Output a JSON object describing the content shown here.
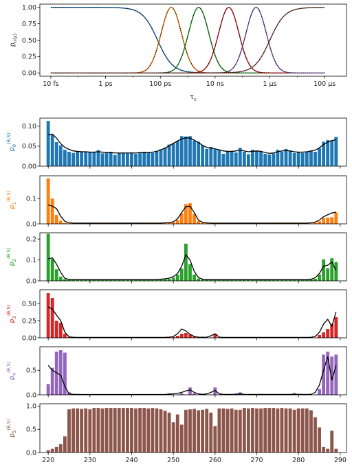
{
  "chart_data": [
    {
      "type": "line",
      "xlabel": "τ_c",
      "ylabel": "ρ_n(z)",
      "xscale": "log",
      "xlim_log10_seconds": [
        -14.4,
        -3.2
      ],
      "ylim": [
        -0.05,
        1.05
      ],
      "x_tick_labels": [
        "10 fs",
        "1 ps",
        "100 ps",
        "10 ns",
        "1 μs",
        "100 μs"
      ],
      "x_tick_values_log10": [
        -14,
        -12,
        -10,
        -8,
        -6,
        -4
      ],
      "y_tick_labels": [
        "0.00",
        "0.25",
        "0.50",
        "0.75",
        "1.00"
      ],
      "y_tick_values": [
        0.0,
        0.25,
        0.5,
        0.75,
        1.0
      ],
      "grid": false,
      "overlay": "black dotted line on each curve",
      "series": [
        {
          "color": "#1f77b4",
          "kind": "step-down",
          "center_log10": -10.1,
          "width": 0.5
        },
        {
          "color": "#ff7f0e",
          "kind": "bump",
          "center_log10": -9.6,
          "width": 0.5
        },
        {
          "color": "#2ca02c",
          "kind": "bump",
          "center_log10": -8.6,
          "width": 0.5
        },
        {
          "color": "#d62728",
          "kind": "bump",
          "center_log10": -7.5,
          "width": 0.5
        },
        {
          "color": "#9467bd",
          "kind": "bump",
          "center_log10": -6.5,
          "width": 0.5
        },
        {
          "color": "#8c564b",
          "kind": "step-up",
          "center_log10": -6.0,
          "width": 0.5
        }
      ]
    },
    {
      "type": "bar",
      "x_start": 220,
      "x_end": 289,
      "xlim": [
        218,
        291.5
      ],
      "x_tick_labels": [
        "220",
        "230",
        "240",
        "250",
        "260",
        "270",
        "280",
        "290"
      ],
      "x_tick_values": [
        220,
        230,
        240,
        250,
        260,
        270,
        280,
        290
      ],
      "overlay": "black line",
      "panels": [
        {
          "ylabel": "ρ_0^(θ,S)",
          "color": "#1f77b4",
          "ylim": [
            0,
            0.12
          ],
          "y_tick_labels": [
            "0.00",
            "0.05",
            "0.10"
          ],
          "y_tick_values": [
            0,
            0.05,
            0.1
          ],
          "bars": [
            0.113,
            0.078,
            0.06,
            0.052,
            0.041,
            0.036,
            0.033,
            0.036,
            0.037,
            0.036,
            0.035,
            0.034,
            0.04,
            0.032,
            0.033,
            0.036,
            0.028,
            0.033,
            0.033,
            0.032,
            0.034,
            0.031,
            0.033,
            0.036,
            0.034,
            0.033,
            0.038,
            0.042,
            0.046,
            0.054,
            0.057,
            0.063,
            0.075,
            0.074,
            0.075,
            0.064,
            0.061,
            0.052,
            0.043,
            0.048,
            0.042,
            0.04,
            0.031,
            0.037,
            0.038,
            0.034,
            0.046,
            0.036,
            0.03,
            0.041,
            0.039,
            0.036,
            0.031,
            0.029,
            0.032,
            0.041,
            0.036,
            0.043,
            0.039,
            0.033,
            0.035,
            0.033,
            0.036,
            0.039,
            0.036,
            0.045,
            0.061,
            0.065,
            0.064,
            0.073
          ],
          "line": [
            0.078,
            0.08,
            0.07,
            0.056,
            0.047,
            0.042,
            0.038,
            0.037,
            0.036,
            0.036,
            0.035,
            0.035,
            0.036,
            0.035,
            0.034,
            0.034,
            0.033,
            0.033,
            0.033,
            0.033,
            0.033,
            0.033,
            0.034,
            0.034,
            0.034,
            0.035,
            0.037,
            0.041,
            0.045,
            0.051,
            0.057,
            0.063,
            0.068,
            0.071,
            0.07,
            0.065,
            0.059,
            0.052,
            0.047,
            0.045,
            0.043,
            0.041,
            0.038,
            0.037,
            0.037,
            0.038,
            0.04,
            0.038,
            0.036,
            0.037,
            0.038,
            0.037,
            0.034,
            0.032,
            0.033,
            0.036,
            0.038,
            0.039,
            0.038,
            0.036,
            0.035,
            0.035,
            0.036,
            0.038,
            0.04,
            0.046,
            0.054,
            0.06,
            0.064,
            0.066
          ]
        },
        {
          "ylabel": "ρ_1^(θ,S)",
          "color": "#ff7f0e",
          "ylim": [
            0,
            0.19
          ],
          "y_tick_labels": [
            "0.0",
            "0.1"
          ],
          "y_tick_values": [
            0,
            0.1
          ],
          "bars": [
            0.18,
            0.1,
            0.035,
            0.013,
            0.003,
            0.002,
            0.002,
            0.002,
            0.002,
            0.002,
            0.002,
            0.002,
            0.003,
            0.002,
            0.002,
            0.002,
            0.002,
            0.002,
            0.002,
            0.002,
            0.002,
            0.002,
            0.002,
            0.002,
            0.002,
            0.002,
            0.003,
            0.003,
            0.003,
            0.004,
            0.006,
            0.015,
            0.042,
            0.078,
            0.082,
            0.04,
            0.011,
            0.004,
            0.003,
            0.003,
            0.002,
            0.002,
            0.002,
            0.003,
            0.002,
            0.002,
            0.003,
            0.002,
            0.002,
            0.003,
            0.002,
            0.002,
            0.002,
            0.002,
            0.002,
            0.002,
            0.002,
            0.002,
            0.002,
            0.002,
            0.002,
            0.002,
            0.002,
            0.002,
            0.004,
            0.01,
            0.023,
            0.025,
            0.026,
            0.045
          ],
          "line": [
            0.075,
            0.07,
            0.06,
            0.03,
            0.01,
            0.004,
            0.003,
            0.003,
            0.003,
            0.003,
            0.003,
            0.003,
            0.003,
            0.003,
            0.003,
            0.003,
            0.003,
            0.003,
            0.003,
            0.003,
            0.003,
            0.003,
            0.003,
            0.003,
            0.003,
            0.003,
            0.003,
            0.003,
            0.004,
            0.005,
            0.008,
            0.02,
            0.045,
            0.068,
            0.07,
            0.045,
            0.015,
            0.006,
            0.004,
            0.003,
            0.003,
            0.003,
            0.003,
            0.003,
            0.003,
            0.003,
            0.003,
            0.003,
            0.003,
            0.003,
            0.003,
            0.003,
            0.003,
            0.003,
            0.003,
            0.003,
            0.003,
            0.003,
            0.003,
            0.003,
            0.003,
            0.003,
            0.003,
            0.004,
            0.007,
            0.015,
            0.028,
            0.036,
            0.043,
            0.046
          ]
        },
        {
          "ylabel": "ρ_2^(θ,S)",
          "color": "#2ca02c",
          "ylim": [
            0,
            0.23
          ],
          "y_tick_labels": [
            "0.0",
            "0.1",
            "0.2"
          ],
          "y_tick_values": [
            0,
            0.1,
            0.2
          ],
          "bars": [
            0.225,
            0.105,
            0.055,
            0.02,
            0.008,
            0.005,
            0.005,
            0.005,
            0.005,
            0.005,
            0.005,
            0.005,
            0.006,
            0.005,
            0.005,
            0.005,
            0.005,
            0.005,
            0.005,
            0.005,
            0.005,
            0.005,
            0.005,
            0.005,
            0.005,
            0.005,
            0.006,
            0.007,
            0.008,
            0.01,
            0.015,
            0.03,
            0.058,
            0.178,
            0.08,
            0.03,
            0.011,
            0.006,
            0.005,
            0.005,
            0.006,
            0.005,
            0.005,
            0.006,
            0.005,
            0.005,
            0.006,
            0.005,
            0.005,
            0.006,
            0.005,
            0.005,
            0.005,
            0.005,
            0.005,
            0.005,
            0.005,
            0.005,
            0.005,
            0.005,
            0.005,
            0.005,
            0.005,
            0.006,
            0.01,
            0.03,
            0.103,
            0.06,
            0.108,
            0.09
          ],
          "line": [
            0.105,
            0.11,
            0.08,
            0.04,
            0.012,
            0.007,
            0.006,
            0.006,
            0.006,
            0.006,
            0.006,
            0.006,
            0.006,
            0.006,
            0.006,
            0.006,
            0.006,
            0.006,
            0.006,
            0.006,
            0.006,
            0.006,
            0.006,
            0.006,
            0.006,
            0.006,
            0.007,
            0.008,
            0.01,
            0.013,
            0.02,
            0.035,
            0.07,
            0.125,
            0.1,
            0.045,
            0.016,
            0.008,
            0.006,
            0.006,
            0.006,
            0.006,
            0.006,
            0.006,
            0.006,
            0.006,
            0.006,
            0.006,
            0.006,
            0.006,
            0.006,
            0.006,
            0.006,
            0.006,
            0.006,
            0.006,
            0.006,
            0.006,
            0.006,
            0.006,
            0.006,
            0.006,
            0.006,
            0.008,
            0.015,
            0.035,
            0.07,
            0.075,
            0.09,
            0.05
          ]
        },
        {
          "ylabel": "ρ_3^(θ,S)",
          "color": "#d62728",
          "ylim": [
            0,
            0.7
          ],
          "y_tick_labels": [
            "0.00",
            "0.25",
            "0.50"
          ],
          "y_tick_values": [
            0,
            0.25,
            0.5
          ],
          "bars": [
            0.65,
            0.58,
            0.25,
            0.22,
            0.06,
            0.01,
            0.005,
            0.005,
            0.005,
            0.005,
            0.005,
            0.005,
            0.005,
            0.005,
            0.005,
            0.005,
            0.005,
            0.005,
            0.005,
            0.005,
            0.005,
            0.005,
            0.005,
            0.005,
            0.005,
            0.005,
            0.005,
            0.005,
            0.006,
            0.008,
            0.012,
            0.03,
            0.06,
            0.07,
            0.05,
            0.02,
            0.008,
            0.006,
            0.006,
            0.006,
            0.06,
            0.006,
            0.005,
            0.005,
            0.005,
            0.005,
            0.005,
            0.005,
            0.005,
            0.005,
            0.005,
            0.005,
            0.005,
            0.005,
            0.005,
            0.005,
            0.005,
            0.005,
            0.005,
            0.005,
            0.005,
            0.005,
            0.005,
            0.005,
            0.005,
            0.04,
            0.08,
            0.13,
            0.2,
            0.3
          ],
          "line": [
            0.45,
            0.42,
            0.33,
            0.25,
            0.08,
            0.015,
            0.008,
            0.006,
            0.006,
            0.006,
            0.006,
            0.006,
            0.006,
            0.006,
            0.006,
            0.006,
            0.006,
            0.006,
            0.006,
            0.006,
            0.006,
            0.006,
            0.006,
            0.006,
            0.006,
            0.006,
            0.006,
            0.006,
            0.007,
            0.01,
            0.02,
            0.06,
            0.13,
            0.1,
            0.05,
            0.02,
            0.01,
            0.008,
            0.01,
            0.03,
            0.06,
            0.01,
            0.006,
            0.006,
            0.006,
            0.006,
            0.006,
            0.006,
            0.006,
            0.006,
            0.006,
            0.006,
            0.006,
            0.006,
            0.006,
            0.006,
            0.006,
            0.006,
            0.006,
            0.006,
            0.006,
            0.006,
            0.006,
            0.008,
            0.02,
            0.08,
            0.2,
            0.27,
            0.17,
            0.38
          ]
        },
        {
          "ylabel": "ρ_4^(θ,S)",
          "color": "#9467bd",
          "ylim": [
            0,
            0.98
          ],
          "y_tick_labels": [
            "0.0",
            "0.5"
          ],
          "y_tick_values": [
            0,
            0.5
          ],
          "bars": [
            0.22,
            0.55,
            0.88,
            0.91,
            0.86,
            0.05,
            0.01,
            0.008,
            0.006,
            0.006,
            0.006,
            0.006,
            0.006,
            0.006,
            0.006,
            0.006,
            0.006,
            0.006,
            0.006,
            0.006,
            0.006,
            0.006,
            0.006,
            0.006,
            0.006,
            0.006,
            0.006,
            0.006,
            0.006,
            0.03,
            0.006,
            0.006,
            0.03,
            0.006,
            0.15,
            0.03,
            0.006,
            0.006,
            0.006,
            0.006,
            0.15,
            0.006,
            0.006,
            0.006,
            0.006,
            0.03,
            0.05,
            0.006,
            0.006,
            0.006,
            0.006,
            0.006,
            0.006,
            0.006,
            0.006,
            0.006,
            0.006,
            0.006,
            0.006,
            0.04,
            0.006,
            0.006,
            0.006,
            0.006,
            0.006,
            0.12,
            0.82,
            0.88,
            0.78,
            0.82
          ],
          "line": [
            0.6,
            0.5,
            0.45,
            0.4,
            0.17,
            0.02,
            0.01,
            0.008,
            0.007,
            0.007,
            0.007,
            0.007,
            0.007,
            0.007,
            0.007,
            0.007,
            0.007,
            0.007,
            0.007,
            0.007,
            0.007,
            0.007,
            0.007,
            0.007,
            0.007,
            0.007,
            0.007,
            0.007,
            0.007,
            0.015,
            0.02,
            0.03,
            0.05,
            0.08,
            0.1,
            0.05,
            0.02,
            0.01,
            0.02,
            0.05,
            0.09,
            0.02,
            0.01,
            0.008,
            0.008,
            0.01,
            0.02,
            0.01,
            0.008,
            0.008,
            0.008,
            0.008,
            0.008,
            0.008,
            0.008,
            0.008,
            0.008,
            0.008,
            0.008,
            0.01,
            0.01,
            0.008,
            0.008,
            0.01,
            0.05,
            0.2,
            0.5,
            0.78,
            0.3,
            0.6
          ]
        },
        {
          "ylabel": "ρ_5^(θ,S)",
          "color": "#8c564b",
          "ylim": [
            0,
            1.05
          ],
          "y_tick_labels": [
            "0.0",
            "0.5",
            "1.0"
          ],
          "y_tick_values": [
            0,
            0.5,
            1.0
          ],
          "bars": [
            0.05,
            0.08,
            0.12,
            0.18,
            0.35,
            0.93,
            0.95,
            0.95,
            0.94,
            0.95,
            0.93,
            0.96,
            0.96,
            0.95,
            0.96,
            0.96,
            0.96,
            0.96,
            0.96,
            0.96,
            0.96,
            0.95,
            0.96,
            0.96,
            0.95,
            0.96,
            0.95,
            0.93,
            0.9,
            0.86,
            0.65,
            0.82,
            0.6,
            0.92,
            0.93,
            0.94,
            0.91,
            0.92,
            0.94,
            0.86,
            0.57,
            0.95,
            0.95,
            0.94,
            0.95,
            0.92,
            0.92,
            0.96,
            0.95,
            0.96,
            0.95,
            0.95,
            0.96,
            0.96,
            0.96,
            0.95,
            0.96,
            0.95,
            0.95,
            0.92,
            0.95,
            0.95,
            0.95,
            0.91,
            0.76,
            0.54,
            0.12,
            0.08,
            0.47,
            0.08
          ],
          "line": []
        }
      ]
    }
  ]
}
